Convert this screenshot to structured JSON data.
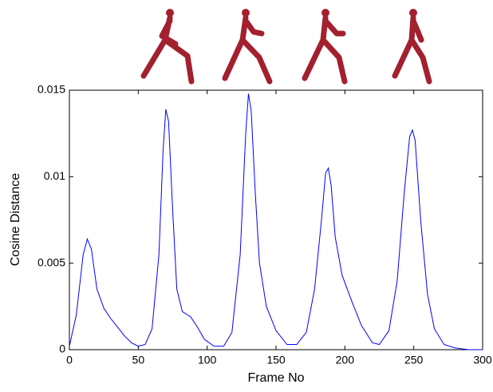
{
  "chart_data": {
    "type": "line",
    "xlabel": "Frame No",
    "ylabel": "Cosine Distance",
    "x": [
      0,
      5,
      10,
      13,
      16,
      20,
      25,
      30,
      35,
      40,
      45,
      50,
      55,
      60,
      65,
      68,
      70,
      72,
      75,
      78,
      82,
      88,
      93,
      98,
      105,
      112,
      118,
      124,
      128,
      130,
      132,
      135,
      138,
      143,
      150,
      158,
      165,
      172,
      178,
      183,
      186,
      188,
      190,
      193,
      198,
      205,
      212,
      220,
      225,
      232,
      238,
      243,
      247,
      249,
      251,
      255,
      260,
      265,
      272,
      280,
      290,
      300
    ],
    "series": [
      {
        "name": "Cosine Distance",
        "color": "#0000ff",
        "values": [
          0.0002,
          0.002,
          0.0055,
          0.0064,
          0.0058,
          0.0035,
          0.0024,
          0.0018,
          0.0013,
          0.0008,
          0.0004,
          0.0002,
          0.0003,
          0.0012,
          0.0055,
          0.0115,
          0.0139,
          0.0132,
          0.008,
          0.0035,
          0.0022,
          0.0019,
          0.0013,
          0.0006,
          0.0002,
          0.0002,
          0.001,
          0.0055,
          0.0125,
          0.0148,
          0.0138,
          0.009,
          0.005,
          0.0025,
          0.0011,
          0.0003,
          0.0003,
          0.001,
          0.0035,
          0.0075,
          0.0102,
          0.0105,
          0.0095,
          0.0065,
          0.0043,
          0.0028,
          0.0014,
          0.0004,
          0.0003,
          0.0011,
          0.004,
          0.009,
          0.0123,
          0.0127,
          0.0121,
          0.0075,
          0.0032,
          0.0012,
          0.0003,
          0.0001,
          0,
          0
        ]
      }
    ],
    "xlim": [
      0,
      300
    ],
    "xticks": [
      0,
      50,
      100,
      150,
      200,
      250,
      300
    ],
    "ylim": [
      0,
      0.015
    ],
    "yticks": [
      0,
      0.005,
      0.01,
      0.015
    ]
  }
}
